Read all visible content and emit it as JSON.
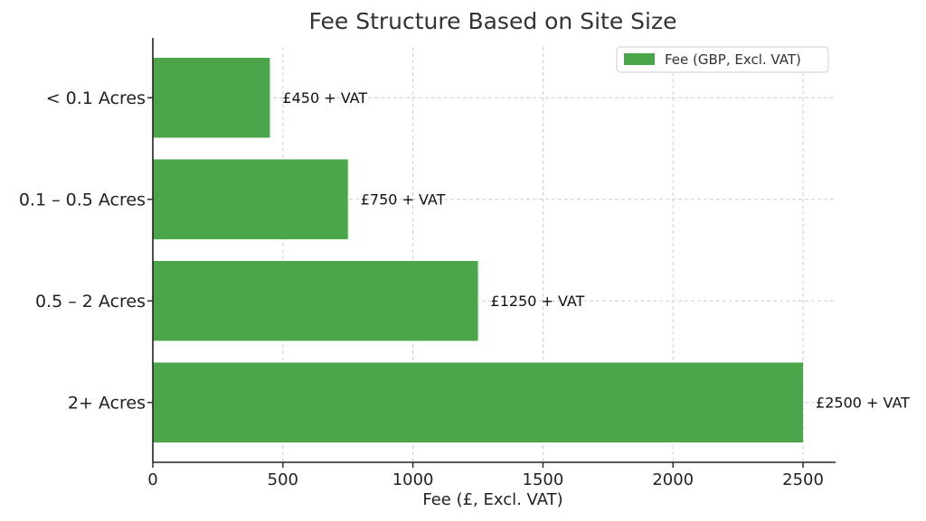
{
  "chart_data": {
    "type": "bar",
    "orientation": "horizontal",
    "title": "Fee Structure Based on Site Size",
    "xlabel": "Fee (£, Excl. VAT)",
    "ylabel": "",
    "categories": [
      "< 0.1 Acres",
      "0.1 – 0.5 Acres",
      "0.5 – 2 Acres",
      "2+ Acres"
    ],
    "series": [
      {
        "name": "Fee (GBP, Excl. VAT)",
        "values": [
          450,
          750,
          1250,
          2500
        ],
        "color": "#4ba64b"
      }
    ],
    "data_labels": [
      "£450 + VAT",
      "£750 + VAT",
      "£1250 + VAT",
      "£2500 + VAT"
    ],
    "xlim": [
      0,
      2625
    ],
    "xticks": [
      0,
      500,
      1000,
      1500,
      2000,
      2500
    ],
    "grid": true,
    "legend_position": "top-right"
  }
}
